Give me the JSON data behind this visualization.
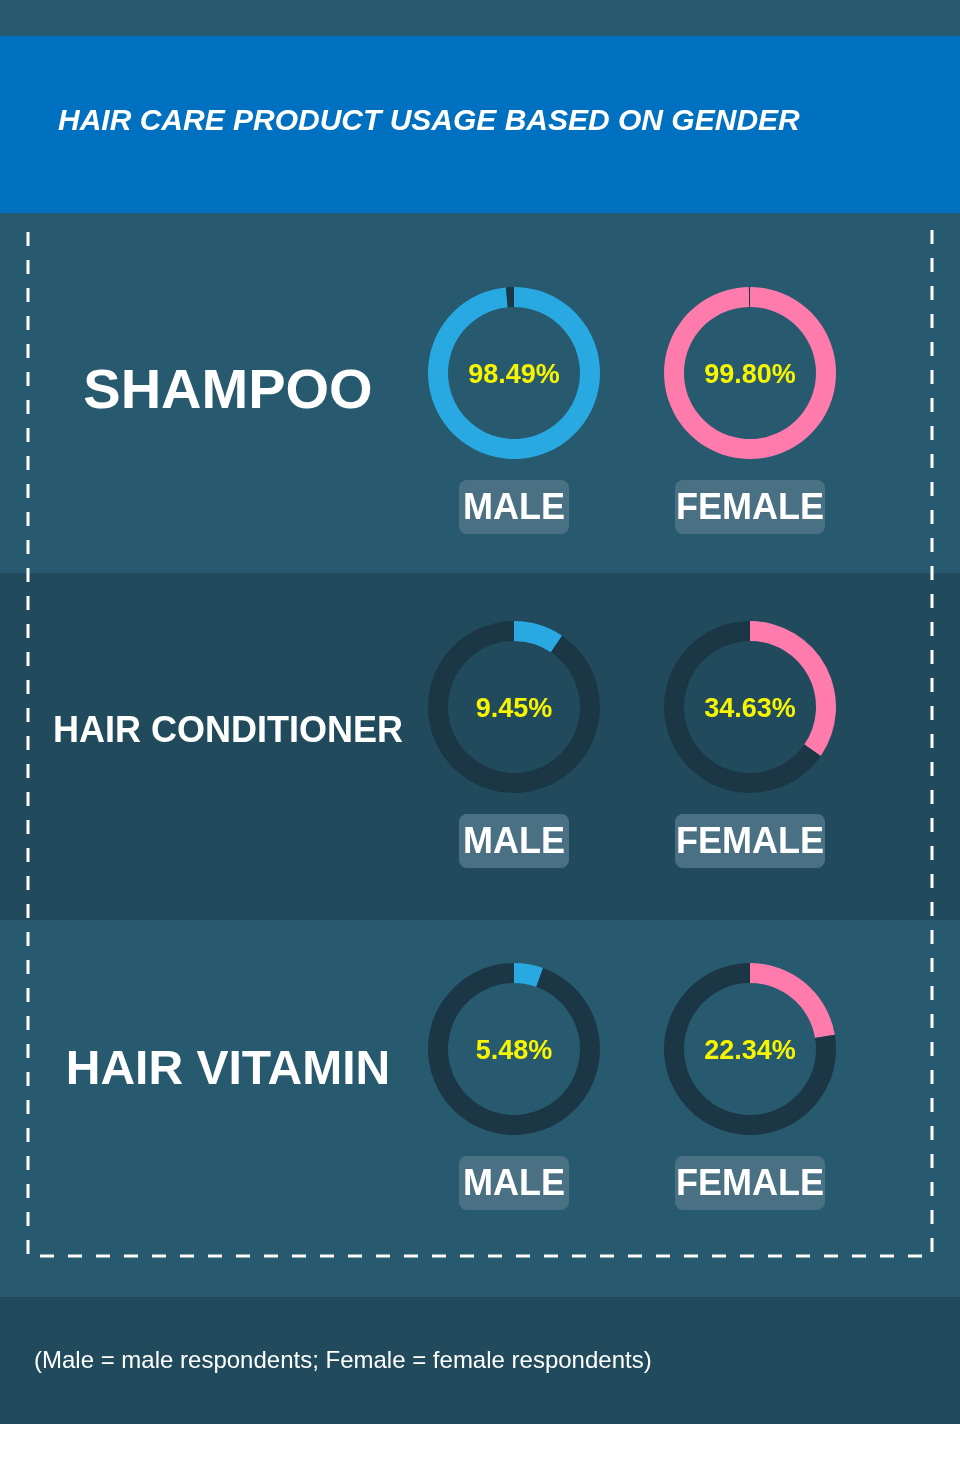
{
  "chart_data": [
    {
      "type": "other",
      "title": "HAIR CARE PRODUCT USAGE BASED ON GENDER",
      "annotations": [
        "(Male = male respondents; Female = female respondents)"
      ]
    },
    {
      "type": "donut",
      "title": "MALE",
      "subtitle": "SHAMPOO",
      "categories": [
        null,
        null
      ],
      "values": [
        98.49,
        1.51
      ],
      "colors": [
        "#29a9e1",
        "#1b3746"
      ],
      "annotations": [
        "98.49%"
      ]
    },
    {
      "type": "donut",
      "title": "FEMALE",
      "categories": [
        null,
        null
      ],
      "values": [
        99.8,
        0.2
      ],
      "colors": [
        "#ff7bac",
        "#1b3746"
      ],
      "annotations": [
        "99.80%"
      ]
    },
    {
      "type": "donut",
      "title": "MALE",
      "subtitle": "HAIR CONDITIONER",
      "categories": [
        null,
        null
      ],
      "values": [
        9.45,
        90.55
      ],
      "colors": [
        "#29a9e1",
        "#1b3746"
      ],
      "annotations": [
        "9.45%"
      ]
    },
    {
      "type": "donut",
      "title": "FEMALE",
      "categories": [
        null,
        null
      ],
      "values": [
        34.63,
        65.37
      ],
      "colors": [
        "#ff7bac",
        "#1b3746"
      ],
      "annotations": [
        "34.63%"
      ]
    },
    {
      "type": "donut",
      "title": "MALE",
      "subtitle": "HAIR VITAMIN",
      "categories": [
        null,
        null
      ],
      "values": [
        5.48,
        94.52
      ],
      "colors": [
        "#29a9e1",
        "#1b3746"
      ],
      "annotations": [
        "5.48%"
      ]
    },
    {
      "type": "donut",
      "title": "FEMALE",
      "categories": [
        null,
        null
      ],
      "values": [
        22.34,
        77.66
      ],
      "colors": [
        "#ff7bac",
        "#1b3746"
      ],
      "annotations": [
        "22.34%"
      ]
    }
  ]
}
